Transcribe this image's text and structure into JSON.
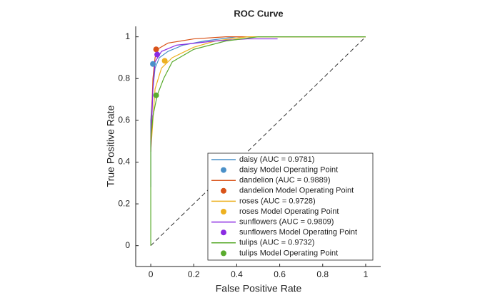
{
  "chart_data": {
    "type": "line",
    "title": "ROC Curve",
    "x_label": "False Positive Rate",
    "y_label": "True Positive Rate",
    "xlim": [
      -0.07,
      1.07
    ],
    "ylim": [
      -0.1,
      1.05
    ],
    "xticks": [
      0,
      0.2,
      0.4,
      0.6,
      0.8,
      1
    ],
    "yticks": [
      0,
      0.2,
      0.4,
      0.6,
      0.8,
      1
    ],
    "legend": "lower-right",
    "series": [
      {
        "name": "daisy (AUC = 0.9781)",
        "color": "#4a90c8",
        "x": [
          0,
          0,
          0.01,
          0.02,
          0.04,
          0.08,
          0.15,
          0.25,
          0.4,
          1
        ],
        "y": [
          0.28,
          0.6,
          0.75,
          0.85,
          0.9,
          0.93,
          0.96,
          0.98,
          1,
          1
        ],
        "op_name": "daisy Model Operating Point",
        "op_x": 0.01,
        "op_y": 0.87
      },
      {
        "name": "dandelion (AUC = 0.9889)",
        "color": "#d95319",
        "x": [
          0,
          0.01,
          0.02,
          0.03,
          0.08,
          0.2,
          0.35,
          1
        ],
        "y": [
          0.5,
          0.8,
          0.9,
          0.94,
          0.97,
          0.99,
          1,
          1
        ],
        "op_name": "dandelion Model Operating Point",
        "op_x": 0.025,
        "op_y": 0.94
      },
      {
        "name": "roses (AUC = 0.9728)",
        "color": "#edb120",
        "x": [
          0,
          0.02,
          0.05,
          0.1,
          0.2,
          0.3,
          0.45,
          1
        ],
        "y": [
          0.45,
          0.75,
          0.85,
          0.9,
          0.95,
          0.98,
          1,
          1
        ],
        "op_name": "roses Model Operating Point",
        "op_x": 0.065,
        "op_y": 0.885
      },
      {
        "name": "sunflowers (AUC = 0.9809)",
        "color": "#8b2be2",
        "x": [
          0,
          0.01,
          0.02,
          0.05,
          0.12,
          0.3,
          0.45,
          0.59
        ],
        "y": [
          0.45,
          0.75,
          0.88,
          0.93,
          0.96,
          0.98,
          0.99,
          0.99
        ],
        "op_name": "sunflowers Model Operating Point",
        "op_x": 0.03,
        "op_y": 0.915
      },
      {
        "name": "tulips (AUC = 0.9732)",
        "color": "#5aab2e",
        "x": [
          0,
          0,
          0.01,
          0.03,
          0.06,
          0.1,
          0.2,
          0.35,
          0.5,
          1
        ],
        "y": [
          0,
          0.5,
          0.62,
          0.72,
          0.8,
          0.88,
          0.94,
          0.98,
          1,
          1
        ],
        "op_name": "tulips Model Operating Point",
        "op_x": 0.025,
        "op_y": 0.72
      }
    ]
  }
}
